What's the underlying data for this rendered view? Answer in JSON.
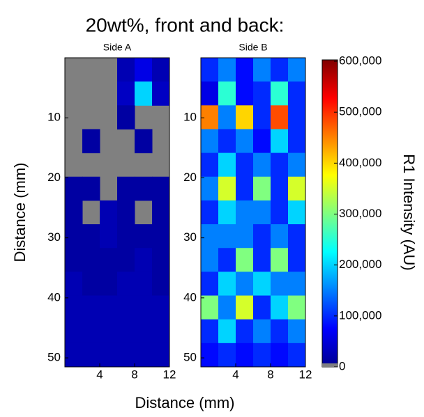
{
  "title": "20wt%, front and back:",
  "xlabel": "Distance (mm)",
  "ylabel": "Distance (mm)",
  "colorbar": {
    "label": "R1 Intensity (AU)",
    "clim": [
      0,
      600000
    ],
    "colormap": "jet",
    "missing_color": "#808080",
    "ticks": [
      0,
      {
        "value": 100000,
        "label": "100,000"
      },
      {
        "value": 200000,
        "label": "200,000"
      },
      {
        "value": 300000,
        "label": "300,000"
      },
      {
        "value": 400000,
        "label": "400,000"
      },
      {
        "value": 500000,
        "label": "500,000"
      },
      {
        "value": 600000,
        "label": "600,000"
      }
    ]
  },
  "chart_data": [
    {
      "type": "heatmap",
      "title": "Side A",
      "xlim": [
        0,
        12
      ],
      "xticks": [
        4,
        8,
        12
      ],
      "ylim": [
        0,
        51.5
      ],
      "yticks": [
        10,
        20,
        30,
        40,
        50
      ],
      "y_reversed": true,
      "z": [
        [
          null,
          null,
          null,
          30000,
          60000,
          30000
        ],
        [
          null,
          null,
          null,
          40000,
          200000,
          40000
        ],
        [
          null,
          null,
          null,
          20000,
          null,
          null
        ],
        [
          null,
          20000,
          null,
          null,
          20000,
          null
        ],
        [
          null,
          null,
          null,
          null,
          null,
          null
        ],
        [
          20000,
          20000,
          null,
          20000,
          20000,
          20000
        ],
        [
          20000,
          null,
          30000,
          20000,
          null,
          20000
        ],
        [
          20000,
          20000,
          30000,
          20000,
          20000,
          20000
        ],
        [
          20000,
          20000,
          20000,
          20000,
          30000,
          20000
        ],
        [
          30000,
          20000,
          20000,
          30000,
          30000,
          20000
        ],
        [
          30000,
          30000,
          30000,
          30000,
          30000,
          30000
        ],
        [
          30000,
          30000,
          30000,
          30000,
          30000,
          30000
        ],
        [
          30000,
          30000,
          30000,
          30000,
          30000,
          30000
        ]
      ]
    },
    {
      "type": "heatmap",
      "title": "Side B",
      "xlim": [
        0,
        12
      ],
      "xticks": [
        4,
        8,
        12
      ],
      "ylim": [
        0,
        51.5
      ],
      "yticks": [
        10,
        20,
        30,
        40,
        50
      ],
      "y_reversed": true,
      "z": [
        [
          100000,
          150000,
          80000,
          150000,
          100000,
          150000
        ],
        [
          60000,
          250000,
          80000,
          100000,
          250000,
          100000
        ],
        [
          450000,
          150000,
          400000,
          100000,
          480000,
          100000
        ],
        [
          150000,
          100000,
          150000,
          80000,
          200000,
          100000
        ],
        [
          100000,
          200000,
          100000,
          150000,
          100000,
          150000
        ],
        [
          150000,
          350000,
          100000,
          300000,
          100000,
          350000
        ],
        [
          100000,
          200000,
          150000,
          150000,
          100000,
          200000
        ],
        [
          150000,
          150000,
          150000,
          100000,
          150000,
          100000
        ],
        [
          150000,
          100000,
          300000,
          100000,
          300000,
          100000
        ],
        [
          100000,
          200000,
          150000,
          200000,
          150000,
          150000
        ],
        [
          300000,
          150000,
          350000,
          100000,
          200000,
          300000
        ],
        [
          100000,
          200000,
          100000,
          150000,
          100000,
          150000
        ],
        [
          80000,
          100000,
          80000,
          100000,
          80000,
          100000
        ]
      ]
    }
  ]
}
